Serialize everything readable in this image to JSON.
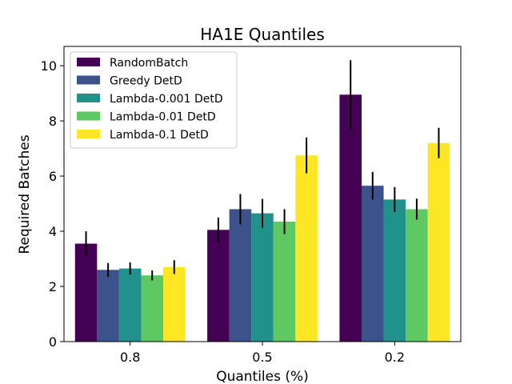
{
  "chart_data": {
    "type": "bar",
    "title": "HA1E Quantiles",
    "xlabel": "Quantiles (%)",
    "ylabel": "Required Batches",
    "categories": [
      "0.8",
      "0.5",
      "0.2"
    ],
    "ylim": [
      0,
      10.7
    ],
    "yticks": [
      0,
      2,
      4,
      6,
      8,
      10
    ],
    "legend_position": "upper-left",
    "series": [
      {
        "name": "RandomBatch",
        "color": "#440154",
        "values": [
          3.55,
          4.05,
          8.95
        ],
        "errors": [
          0.45,
          0.45,
          1.25
        ]
      },
      {
        "name": "Greedy DetD",
        "color": "#3b528b",
        "values": [
          2.6,
          4.8,
          5.65
        ],
        "errors": [
          0.25,
          0.55,
          0.5
        ]
      },
      {
        "name": "Lambda-0.001 DetD",
        "color": "#21918c",
        "values": [
          2.65,
          4.65,
          5.15
        ],
        "errors": [
          0.22,
          0.52,
          0.45
        ]
      },
      {
        "name": "Lambda-0.01 DetD",
        "color": "#5ec962",
        "values": [
          2.4,
          4.35,
          4.8
        ],
        "errors": [
          0.18,
          0.45,
          0.38
        ]
      },
      {
        "name": "Lambda-0.1 DetD",
        "color": "#fde725",
        "values": [
          2.7,
          6.75,
          7.2
        ],
        "errors": [
          0.25,
          0.65,
          0.55
        ]
      }
    ]
  }
}
